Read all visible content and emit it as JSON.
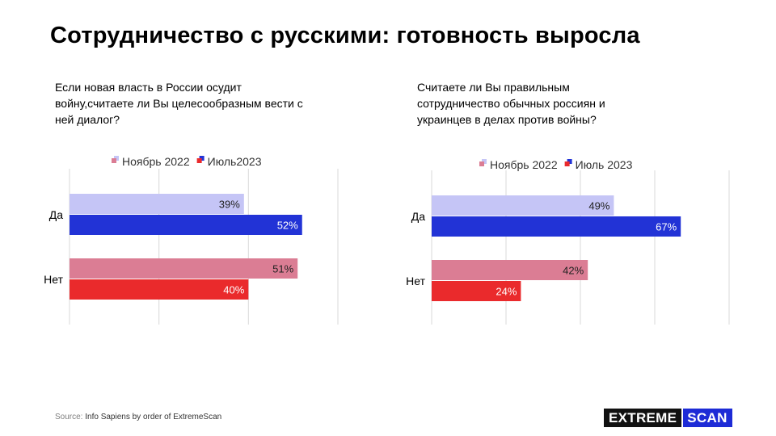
{
  "title": "Сотрудничество  с русскими: готовность  выросла",
  "source": {
    "label": "Source:",
    "text": " Info Sapiens by order of ExtremeScan"
  },
  "logo": {
    "part1": "EXTREME",
    "part2": "SCAN"
  },
  "colors": {
    "nov_da": "#c5c5f6",
    "jul_da": "#2233d6",
    "nov_net": "#db7d94",
    "jul_net": "#ea2a2c"
  },
  "chart_data": [
    {
      "type": "bar",
      "title": "Если новая власть в России осудит войну,считаете  ли Вы целесообразным вести с ней диалог?",
      "categories": [
        "Да",
        "Нет"
      ],
      "series": [
        {
          "name": "Ноябрь 2022",
          "values": [
            39,
            51
          ]
        },
        {
          "name": "Июль2023",
          "values": [
            52,
            40
          ]
        }
      ],
      "value_suffix": "%",
      "xlim": [
        0,
        60
      ],
      "grid": true,
      "legend": "top"
    },
    {
      "type": "bar",
      "title": "Считаете ли Вы правильным сотрудничество обычных россиян и украинцев в делах против войны?",
      "categories": [
        "Да",
        "Нет"
      ],
      "series": [
        {
          "name": "Ноябрь 2022",
          "values": [
            49,
            42
          ]
        },
        {
          "name": "Июль 2023",
          "values": [
            67,
            24
          ]
        }
      ],
      "value_suffix": "%",
      "xlim": [
        0,
        80
      ],
      "grid": true,
      "legend": "top"
    }
  ]
}
